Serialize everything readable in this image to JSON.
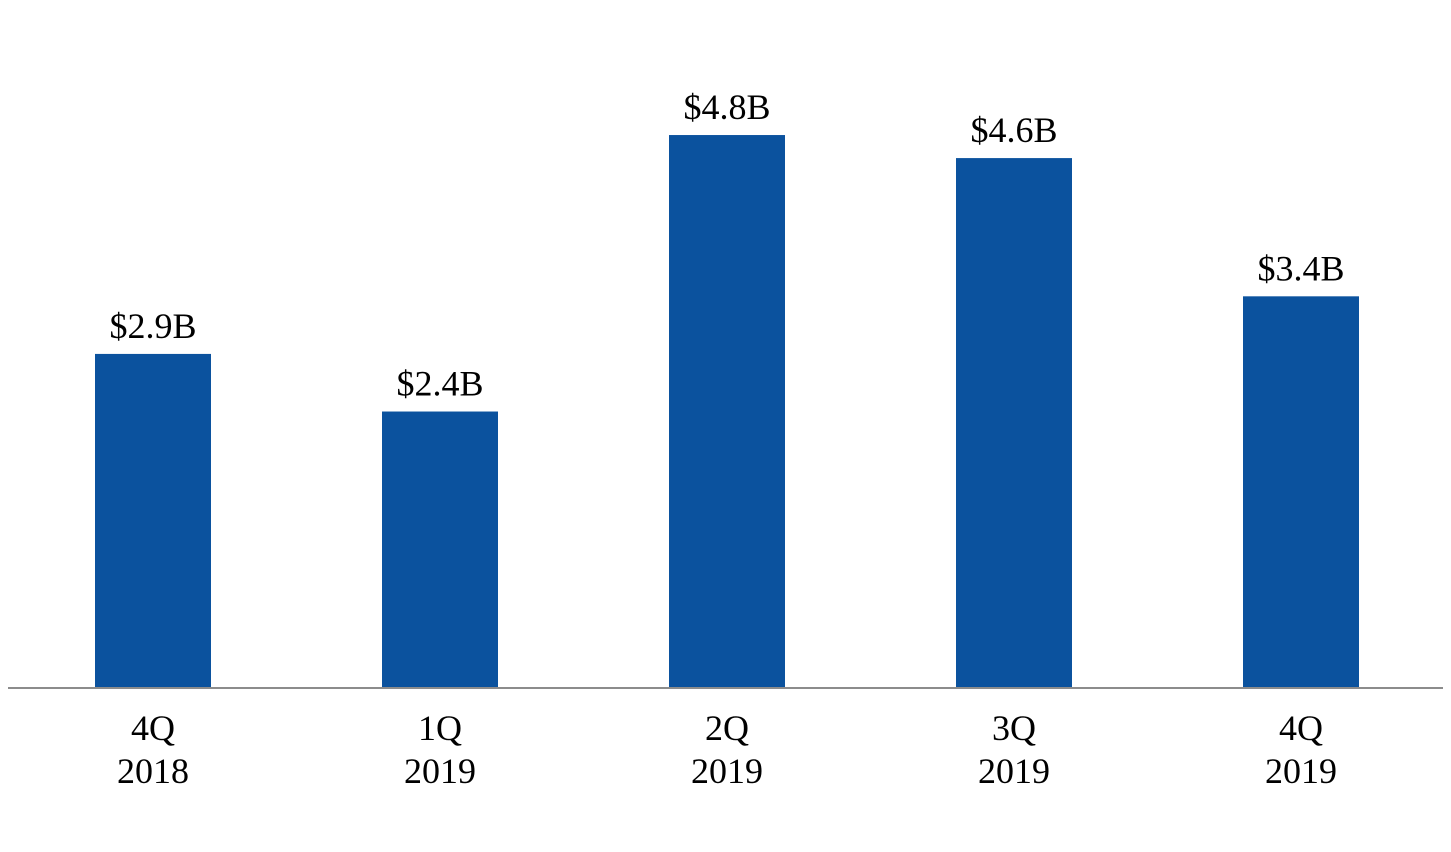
{
  "chart_data": {
    "type": "bar",
    "categories": [
      [
        "4Q",
        "2018"
      ],
      [
        "1Q",
        "2019"
      ],
      [
        "2Q",
        "2019"
      ],
      [
        "3Q",
        "2019"
      ],
      [
        "4Q",
        "2019"
      ]
    ],
    "values": [
      2.9,
      2.4,
      4.8,
      4.6,
      3.4
    ],
    "data_labels": [
      "$2.9B",
      "$2.4B",
      "$4.8B",
      "$4.6B",
      "$3.4B"
    ],
    "title": "",
    "xlabel": "",
    "ylabel": "",
    "ylim": [
      0,
      5.0
    ],
    "grid": false,
    "legend": "none",
    "colors": {
      "bar": "#0B529E",
      "axis": "#8C8C8C",
      "text": "#000000"
    }
  }
}
